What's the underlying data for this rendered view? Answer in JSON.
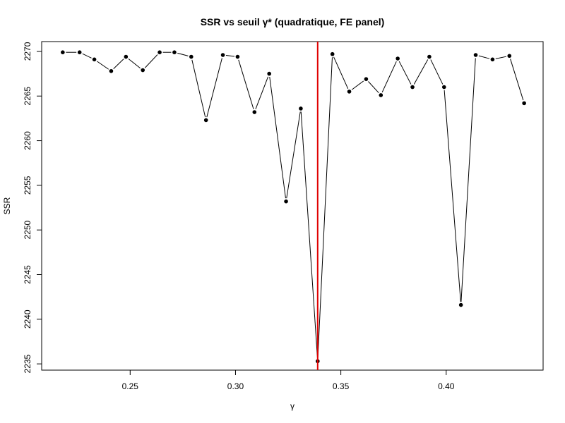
{
  "chart_data": {
    "type": "line",
    "title": "SSR vs seuil γ* (quadratique, FE panel)",
    "xlabel": "γ",
    "ylabel": "SSR",
    "xlim": [
      0.208,
      0.446
    ],
    "ylim": [
      2234.3,
      2271.1
    ],
    "xticks": [
      0.25,
      0.3,
      0.35,
      0.4
    ],
    "xtick_labels": [
      "0.25",
      "0.30",
      "0.35",
      "0.40"
    ],
    "yticks": [
      2235,
      2240,
      2245,
      2250,
      2255,
      2260,
      2265,
      2270
    ],
    "ytick_labels": [
      "2235",
      "2240",
      "2245",
      "2250",
      "2255",
      "2260",
      "2265",
      "2270"
    ],
    "grid": false,
    "series": [
      {
        "x": [
          0.218,
          0.226,
          0.233,
          0.241,
          0.248,
          0.256,
          0.264,
          0.271,
          0.279,
          0.286,
          0.294,
          0.301,
          0.309,
          0.316,
          0.324,
          0.331,
          0.339,
          0.346,
          0.354,
          0.362,
          0.369,
          0.377,
          0.384,
          0.392,
          0.399,
          0.407,
          0.414,
          0.422,
          0.43,
          0.437
        ],
        "y": [
          2269.9,
          2269.9,
          2269.1,
          2267.8,
          2269.4,
          2267.9,
          2269.9,
          2269.9,
          2269.4,
          2262.3,
          2269.6,
          2269.4,
          2263.2,
          2267.5,
          2253.2,
          2263.6,
          2235.3,
          2269.7,
          2265.5,
          2266.9,
          2265.1,
          2269.2,
          2266.0,
          2269.4,
          2266.0,
          2241.6,
          2269.6,
          2269.1,
          2269.5,
          2264.2
        ]
      }
    ],
    "vline": {
      "x": 0.339,
      "color": "#e00000"
    },
    "line_color": "#000000",
    "point_color": "#000000"
  }
}
